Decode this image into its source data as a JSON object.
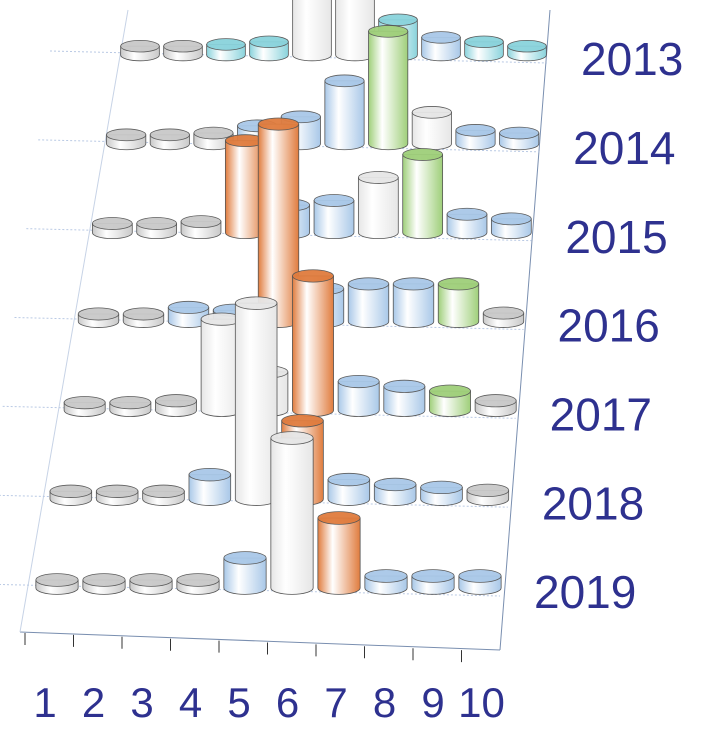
{
  "chart_data": {
    "type": "bar3d",
    "categories": [
      "1",
      "2",
      "3",
      "4",
      "5",
      "6",
      "7",
      "8",
      "9",
      "10"
    ],
    "series": [
      {
        "name": "2013",
        "values": [
          10,
          10,
          12,
          15,
          120,
          160,
          40,
          20,
          15,
          10
        ],
        "colors": [
          "#c9c9c9",
          "#c9c9c9",
          "#8ad3dc",
          "#8ad3dc",
          "#e6e6e6",
          "#e6e6e6",
          "#8ad3dc",
          "#a9c8e8",
          "#8ad3dc",
          "#8ad3dc"
        ]
      },
      {
        "name": "2014",
        "values": [
          10,
          10,
          12,
          20,
          30,
          70,
          125,
          35,
          15,
          12
        ],
        "colors": [
          "#c9c9c9",
          "#c9c9c9",
          "#c9c9c9",
          "#a9c8e8",
          "#a9c8e8",
          "#a9c8e8",
          "#9fcf7a",
          "#e6e6e6",
          "#a9c8e8",
          "#a9c8e8"
        ]
      },
      {
        "name": "2015",
        "values": [
          10,
          10,
          12,
          100,
          30,
          35,
          60,
          85,
          20,
          15
        ],
        "colors": [
          "#c9c9c9",
          "#c9c9c9",
          "#c9c9c9",
          "#e07c3e",
          "#a9c8e8",
          "#a9c8e8",
          "#e6e6e6",
          "#9fcf7a",
          "#a9c8e8",
          "#a9c8e8"
        ]
      },
      {
        "name": "2016",
        "values": [
          8,
          8,
          15,
          12,
          210,
          35,
          40,
          40,
          40,
          9
        ],
        "colors": [
          "#c9c9c9",
          "#c9c9c9",
          "#a9c8e8",
          "#a9c8e8",
          "#e07c3e",
          "#a9c8e8",
          "#a9c8e8",
          "#a9c8e8",
          "#9fcf7a",
          "#c9c9c9"
        ]
      },
      {
        "name": "2017",
        "values": [
          8,
          8,
          10,
          95,
          40,
          140,
          30,
          25,
          20,
          10
        ],
        "colors": [
          "#c9c9c9",
          "#c9c9c9",
          "#c9c9c9",
          "#e6e6e6",
          "#e6e6e6",
          "#e07c3e",
          "#a9c8e8",
          "#a9c8e8",
          "#9fcf7a",
          "#c9c9c9"
        ]
      },
      {
        "name": "2018",
        "values": [
          8,
          8,
          8,
          25,
          200,
          80,
          20,
          15,
          12,
          9
        ],
        "colors": [
          "#c9c9c9",
          "#c9c9c9",
          "#c9c9c9",
          "#a9c8e8",
          "#e6e6e6",
          "#e07c3e",
          "#a9c8e8",
          "#a9c8e8",
          "#a9c8e8",
          "#c9c9c9"
        ]
      },
      {
        "name": "2019",
        "values": [
          8,
          8,
          8,
          8,
          30,
          150,
          70,
          12,
          12,
          12
        ],
        "colors": [
          "#c9c9c9",
          "#c9c9c9",
          "#c9c9c9",
          "#c9c9c9",
          "#a9c8e8",
          "#e6e6e6",
          "#e07c3e",
          "#a9c8e8",
          "#a9c8e8",
          "#a9c8e8"
        ]
      }
    ]
  }
}
